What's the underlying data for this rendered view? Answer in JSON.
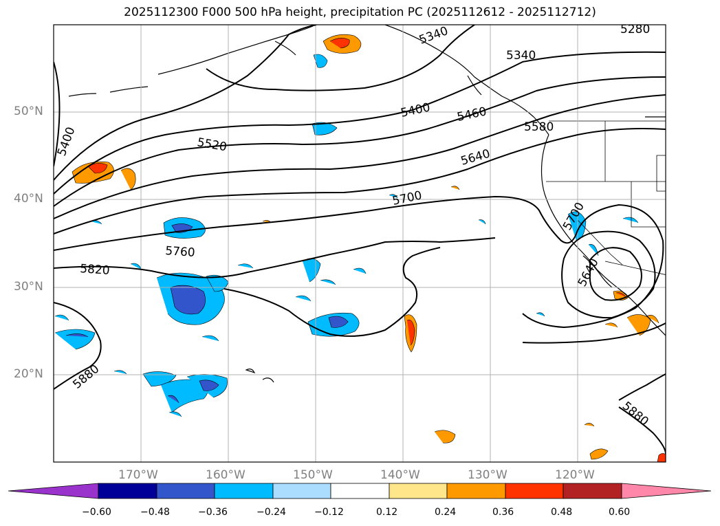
{
  "title": "2025112300 F000 500 hPa height, precipitation PC (2025112612 - 2025112712)",
  "map": {
    "lon_range": [
      -180,
      -110
    ],
    "lat_range": [
      10,
      60
    ],
    "grid": true,
    "lat_labels": [
      "50°N",
      "40°N",
      "30°N",
      "20°N"
    ],
    "lon_labels": [
      "170°W",
      "160°W",
      "150°W",
      "140°W",
      "130°W",
      "120°W"
    ],
    "contour_labels": [
      "5280",
      "5340",
      "5340",
      "5400",
      "5400",
      "5460",
      "5520",
      "5580",
      "5640",
      "5700",
      "5700",
      "5760",
      "5820",
      "5880",
      "5880",
      "5640"
    ]
  },
  "colorbar": {
    "ticks": [
      "−0.60",
      "−0.48",
      "−0.36",
      "−0.24",
      "−0.12",
      "0.12",
      "0.24",
      "0.36",
      "0.48",
      "0.60"
    ],
    "colors": [
      "#9933cc",
      "#000099",
      "#3355cc",
      "#00bbff",
      "#aaddff",
      "#ffffff",
      "#ffe68a",
      "#ff9900",
      "#ff3300",
      "#b22222",
      "#ff88aa"
    ],
    "extend": "both"
  }
}
